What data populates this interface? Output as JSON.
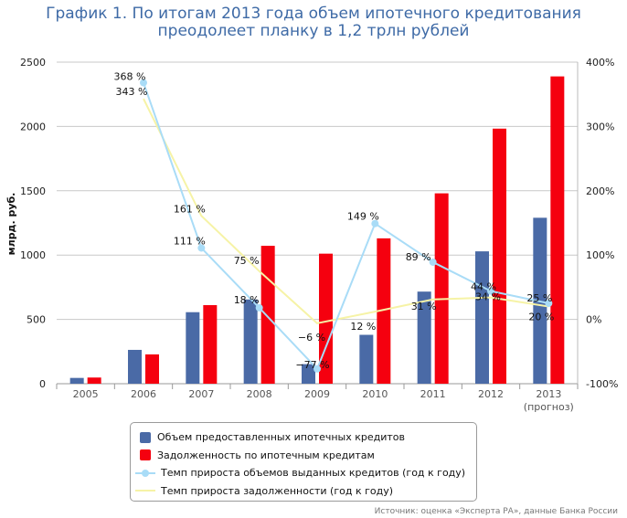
{
  "title": "График 1. По итогам 2013 года объем ипотечного кредитования преодолеет планку в 1,2 трлн рублей",
  "source": "Источник: оценка «Эксперта РА», данные Банка России",
  "colors": {
    "issued": "#4a6aa6",
    "debt": "#f5000f",
    "issued_growth": "#a9dcf7",
    "debt_growth": "#f6f3a6",
    "grid": "#c8c8c8"
  },
  "chart_data": {
    "type": "bar",
    "categories": [
      "2005",
      "2006",
      "2007",
      "2008",
      "2009",
      "2010",
      "2011",
      "2012",
      "2013"
    ],
    "category_sublabels": [
      "",
      "",
      "",
      "",
      "",
      "",
      "",
      "",
      "(прогноз)"
    ],
    "ylabel": "млрд. руб.",
    "ylim": [
      0,
      2500
    ],
    "yticks": [
      0,
      500,
      1000,
      1500,
      2000,
      2500
    ],
    "y2lim": [
      -100,
      400
    ],
    "y2ticks": [
      "-100%",
      "0%",
      "100%",
      "200%",
      "300%",
      "400%"
    ],
    "y2tick_values": [
      -100,
      0,
      100,
      200,
      300,
      400
    ],
    "grid": true,
    "legend_position": "bottom",
    "series": [
      {
        "name": "Объем предоставленных ипотечных кредитов",
        "type": "bar",
        "axis": "left",
        "values": [
          45,
          263,
          556,
          655,
          152,
          380,
          716,
          1029,
          1290
        ]
      },
      {
        "name": "Задолженность по ипотечным кредитам",
        "type": "bar",
        "axis": "left",
        "values": [
          48,
          228,
          611,
          1072,
          1011,
          1130,
          1480,
          1983,
          2389
        ]
      },
      {
        "name": "Темп прироста объемов выданных кредитов (год к году)",
        "type": "line",
        "axis": "right",
        "values": [
          null,
          368,
          111,
          18,
          -77,
          149,
          89,
          44,
          25
        ],
        "labels": [
          "",
          "368 %",
          "111 %",
          "18 %",
          "−77 %",
          "149 %",
          "89 %",
          "44 %",
          "25 %"
        ]
      },
      {
        "name": "Темп прироста задолженности (год к году)",
        "type": "line",
        "axis": "right",
        "values": [
          null,
          343,
          161,
          75,
          -6,
          12,
          31,
          34,
          20
        ],
        "labels": [
          "",
          "343 %",
          "161 %",
          "75 %",
          "−6 %",
          "12 %",
          "31 %",
          "34 %",
          "20 %"
        ]
      }
    ]
  }
}
